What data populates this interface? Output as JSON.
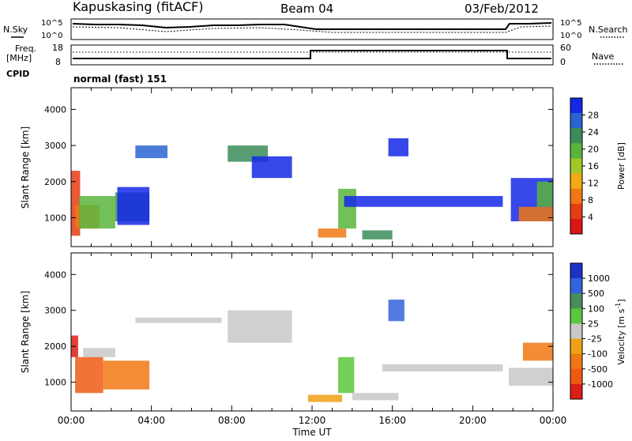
{
  "header": {
    "station": "Kapuskasing (fitACF)",
    "beam": "Beam 04",
    "date": "03/Feb/2012"
  },
  "status_panels": {
    "nsky_label": "N.Sky",
    "nsearch_label": "N.Search",
    "noise_ticks": [
      "10^5",
      "10^0"
    ],
    "freq_label_1": "Freq.",
    "freq_label_2": "[MHz]",
    "freq_ticks": [
      "18",
      "8"
    ],
    "nave_label": "Nave",
    "nave_ticks": [
      "60",
      "0"
    ],
    "cpid_label": "CPID",
    "cpid_value": "normal (fast) 151"
  },
  "colorbars": {
    "power": {
      "label": "Power [dB]",
      "ticks": [
        "28",
        "24",
        "20",
        "16",
        "12",
        "8",
        "4"
      ],
      "colors": [
        "#1428e6",
        "#2a64d2",
        "#3c8c5a",
        "#5ab43c",
        "#a0c828",
        "#f0aa14",
        "#f07814",
        "#e63c14",
        "#dc1414"
      ]
    },
    "velocity": {
      "label": "Velocity [m s",
      "label_sup": "-1",
      "label_close": "]",
      "ticks": [
        "1000",
        "500",
        "100",
        "25",
        "-25",
        "-100",
        "-500",
        "-1000"
      ],
      "colors": [
        "#1e32c8",
        "#3264dc",
        "#4a8c5a",
        "#5ac83c",
        "#c8c8c8",
        "#f0a014",
        "#f07814",
        "#ee5a14",
        "#dc1e14"
      ]
    }
  },
  "chart_data": [
    {
      "type": "heatmap",
      "title": "Power",
      "ylabel": "Slant Range [km]",
      "ylim": [
        200,
        4600
      ],
      "yticks": [
        "4000",
        "3000",
        "2000",
        "1000"
      ],
      "xlim": [
        0,
        24
      ],
      "bands": [
        {
          "t0": 0.0,
          "t1": 0.45,
          "r0": 500,
          "r1": 2300,
          "c": "#e63c14"
        },
        {
          "t0": 0.2,
          "t1": 1.4,
          "r0": 700,
          "r1": 1350,
          "c": "#f07814"
        },
        {
          "t0": 0.4,
          "t1": 2.2,
          "r0": 700,
          "r1": 1600,
          "c": "#5ab43c"
        },
        {
          "t0": 2.2,
          "t1": 3.9,
          "r0": 900,
          "r1": 1700,
          "c": "#3c8c5a"
        },
        {
          "t0": 2.3,
          "t1": 3.9,
          "r0": 800,
          "r1": 1850,
          "c": "#1428e6"
        },
        {
          "t0": 3.2,
          "t1": 4.8,
          "r0": 2650,
          "r1": 3000,
          "c": "#2a64d2"
        },
        {
          "t0": 7.8,
          "t1": 9.8,
          "r0": 2550,
          "r1": 3000,
          "c": "#3c8c5a"
        },
        {
          "t0": 9.0,
          "t1": 11.0,
          "r0": 2100,
          "r1": 2700,
          "c": "#1428e6"
        },
        {
          "t0": 12.3,
          "t1": 13.7,
          "r0": 450,
          "r1": 700,
          "c": "#f07814"
        },
        {
          "t0": 13.3,
          "t1": 14.2,
          "r0": 700,
          "r1": 1800,
          "c": "#5ab43c"
        },
        {
          "t0": 13.6,
          "t1": 21.5,
          "r0": 1300,
          "r1": 1600,
          "c": "#1428e6"
        },
        {
          "t0": 14.5,
          "t1": 16.0,
          "r0": 400,
          "r1": 650,
          "c": "#3c8c5a"
        },
        {
          "t0": 15.8,
          "t1": 16.8,
          "r0": 2700,
          "r1": 3200,
          "c": "#1428e6"
        },
        {
          "t0": 21.9,
          "t1": 24.0,
          "r0": 900,
          "r1": 2100,
          "c": "#1428e6"
        },
        {
          "t0": 22.3,
          "t1": 24.0,
          "r0": 900,
          "r1": 1300,
          "c": "#f07814"
        },
        {
          "t0": 23.2,
          "t1": 24.0,
          "r0": 1300,
          "r1": 2000,
          "c": "#5ab43c"
        }
      ]
    },
    {
      "type": "heatmap",
      "title": "Velocity",
      "ylabel": "Slant Range [km]",
      "ylim": [
        200,
        4600
      ],
      "yticks": [
        "4000",
        "3000",
        "2000",
        "1000"
      ],
      "xticks": [
        "00:00",
        "04:00",
        "08:00",
        "12:00",
        "16:00",
        "20:00",
        "00:00"
      ],
      "xlabel": "Time UT",
      "xlim": [
        0,
        24
      ],
      "bands": [
        {
          "t0": 0.0,
          "t1": 0.35,
          "r0": 1700,
          "r1": 2300,
          "c": "#dc1e14"
        },
        {
          "t0": 0.2,
          "t1": 1.6,
          "r0": 700,
          "r1": 1700,
          "c": "#ee5a14"
        },
        {
          "t0": 1.6,
          "t1": 3.9,
          "r0": 800,
          "r1": 1600,
          "c": "#f07814"
        },
        {
          "t0": 0.6,
          "t1": 2.2,
          "r0": 1700,
          "r1": 1950,
          "c": "#c8c8c8"
        },
        {
          "t0": 3.2,
          "t1": 7.5,
          "r0": 2650,
          "r1": 2800,
          "c": "#c8c8c8"
        },
        {
          "t0": 7.8,
          "t1": 11.0,
          "r0": 2100,
          "r1": 3000,
          "c": "#c8c8c8"
        },
        {
          "t0": 11.8,
          "t1": 13.5,
          "r0": 450,
          "r1": 650,
          "c": "#f0a014"
        },
        {
          "t0": 13.3,
          "t1": 14.1,
          "r0": 700,
          "r1": 1700,
          "c": "#5ac83c"
        },
        {
          "t0": 14.0,
          "t1": 16.3,
          "r0": 500,
          "r1": 700,
          "c": "#c8c8c8"
        },
        {
          "t0": 15.8,
          "t1": 16.6,
          "r0": 2700,
          "r1": 3300,
          "c": "#3264dc"
        },
        {
          "t0": 15.5,
          "t1": 21.5,
          "r0": 1300,
          "r1": 1500,
          "c": "#c8c8c8"
        },
        {
          "t0": 21.8,
          "t1": 24.0,
          "r0": 900,
          "r1": 1400,
          "c": "#c8c8c8"
        },
        {
          "t0": 22.5,
          "t1": 24.0,
          "r0": 1600,
          "r1": 2100,
          "c": "#f07814"
        }
      ]
    }
  ]
}
